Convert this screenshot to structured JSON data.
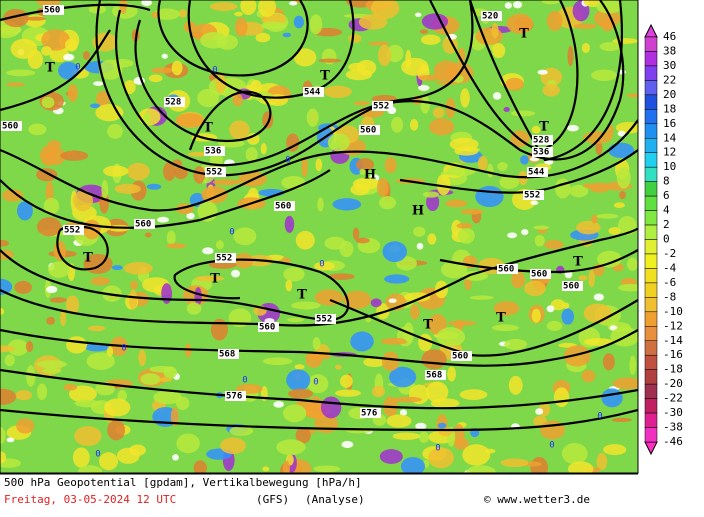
{
  "legend": {
    "labels": [
      "46",
      "38",
      "30",
      "22",
      "20",
      "18",
      "16",
      "14",
      "12",
      "10",
      "8",
      "6",
      "4",
      "2",
      "0",
      "-2",
      "-4",
      "-6",
      "-8",
      "-10",
      "-12",
      "-14",
      "-16",
      "-18",
      "-20",
      "-22",
      "-30",
      "-38",
      "-46"
    ]
  },
  "contour_labels": [
    "560",
    "520",
    "544",
    "552",
    "528",
    "536",
    "552",
    "560",
    "528",
    "536",
    "544",
    "552",
    "560",
    "560",
    "552",
    "560",
    "552",
    "560",
    "560",
    "560",
    "552",
    "560",
    "560",
    "568",
    "568",
    "576",
    "576"
  ],
  "pressure_centers": [
    "T",
    "T",
    "T",
    "T",
    "T",
    "H",
    "H",
    "T",
    "T",
    "T",
    "T",
    "T",
    "T"
  ],
  "zero_labels": [
    "0",
    "0",
    "0",
    "0",
    "0",
    "0",
    "0",
    "0",
    "0",
    "0",
    "0",
    "0"
  ],
  "footer": {
    "title": "500 hPa Geopotential [gpdam], Vertikalbewegung [hPa/h]",
    "date": "Freitag, 03-05-2024  12 UTC",
    "model": "(GFS)",
    "run": "(Analyse)",
    "credit": "© www.wetter3.de"
  }
}
